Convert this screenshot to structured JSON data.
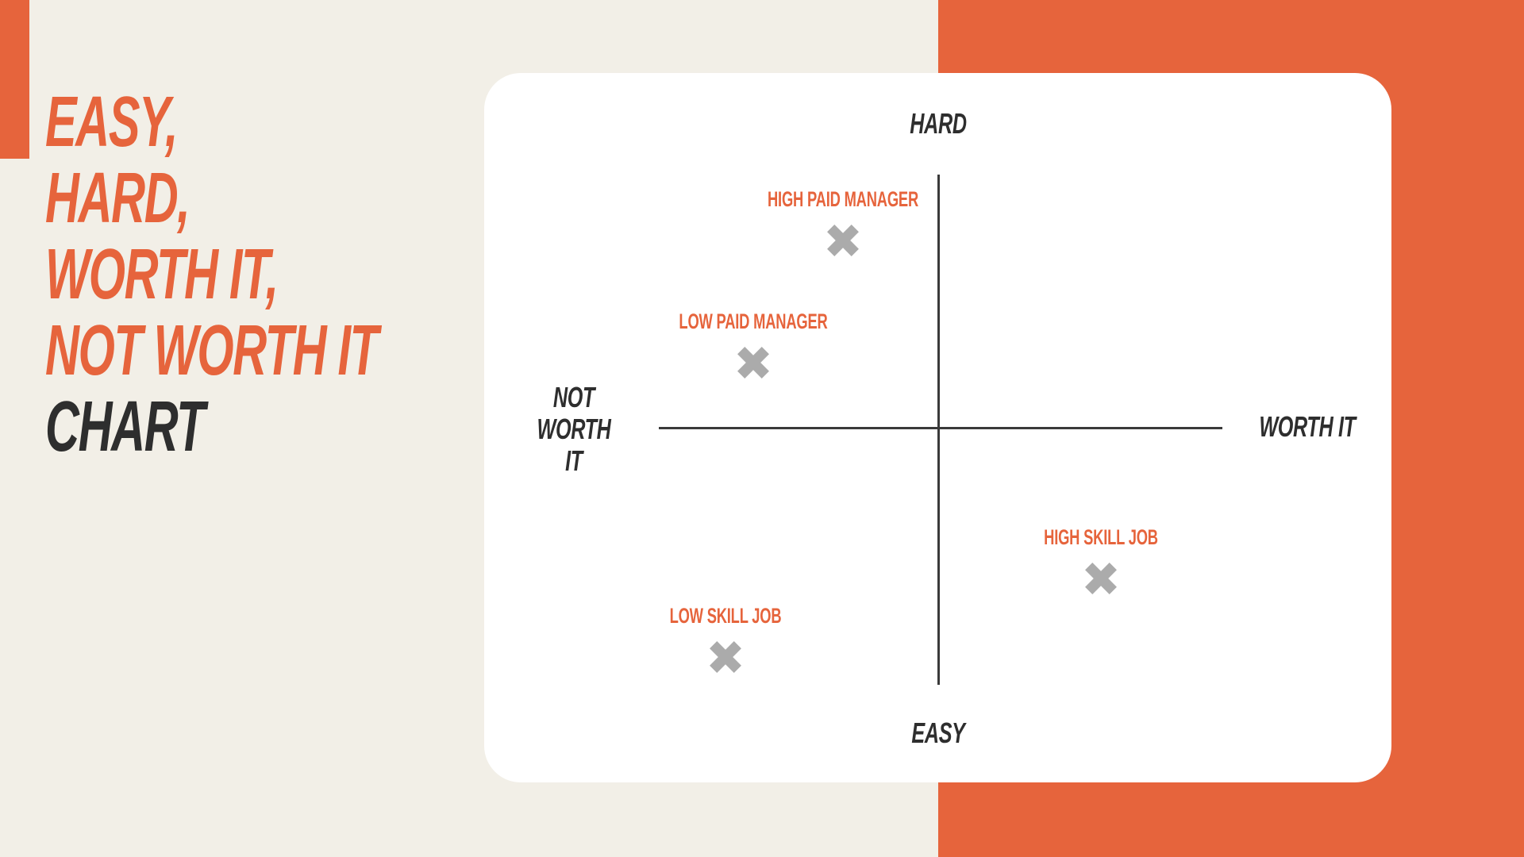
{
  "page": {
    "background_color": "#F2EFE7",
    "accent_color": "#E6643C",
    "dark_color": "#2E2E2E",
    "marker_color": "#ABABAB",
    "card_color": "#FFFFFF"
  },
  "title": {
    "lines": [
      "EASY,",
      "HARD,",
      "WORTH IT,",
      "NOT WORTH IT",
      "CHART"
    ]
  },
  "chart_data": {
    "type": "scatter",
    "title": "Easy, Hard, Worth It, Not Worth It Chart",
    "grid": false,
    "legend": "none",
    "marker": "x",
    "marker_color": "#ABABAB",
    "label_color": "#E6643C",
    "axes": {
      "x": {
        "negative_label": "NOT WORTH IT",
        "positive_label": "WORTH IT",
        "range": [
          -1,
          1
        ]
      },
      "y": {
        "negative_label": "EASY",
        "positive_label": "HARD",
        "range": [
          -1,
          1
        ]
      }
    },
    "points": [
      {
        "label": "HIGH PAID MANAGER",
        "x": -0.34,
        "y": 0.74
      },
      {
        "label": "LOW PAID MANAGER",
        "x": -0.66,
        "y": 0.26
      },
      {
        "label": "HIGH SKILL JOB",
        "x": 0.58,
        "y": -0.59
      },
      {
        "label": "LOW SKILL JOB",
        "x": -0.76,
        "y": -0.9
      }
    ]
  }
}
